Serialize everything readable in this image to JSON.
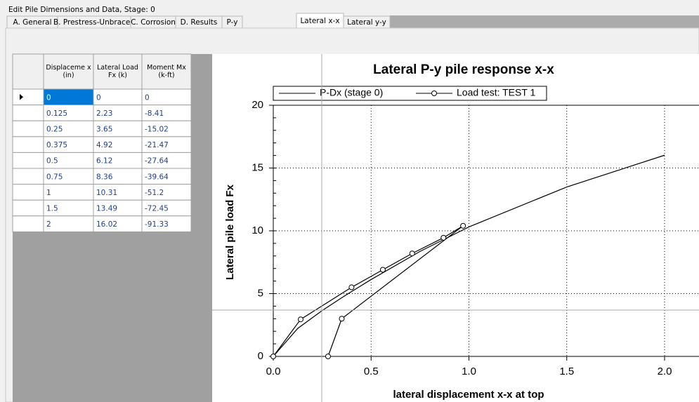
{
  "window": {
    "title": "Edit Pile Dimensions and Data, Stage: 0"
  },
  "tabs": [
    "A. General",
    "B. Prestress-Unbraced",
    "C. Corrosion",
    "D. Results",
    "P-y",
    "Lateral x-x",
    "Lateral y-y"
  ],
  "table": {
    "headers": [
      "Displaceme x (in)",
      "Lateral Load Fx (k)",
      "Moment Mx (k-ft)"
    ],
    "rows": [
      [
        "0",
        "0",
        "0"
      ],
      [
        "0.125",
        "2.23",
        "-8.41"
      ],
      [
        "0.25",
        "3.65",
        "-15.02"
      ],
      [
        "0.375",
        "4.92",
        "-21.47"
      ],
      [
        "0.5",
        "6.12",
        "-27.64"
      ],
      [
        "0.75",
        "8.36",
        "-39.64"
      ],
      [
        "1",
        "10.31",
        "-51.2"
      ],
      [
        "1.5",
        "13.49",
        "-72.45"
      ],
      [
        "2",
        "16.02",
        "-91.33"
      ]
    ]
  },
  "chart_data": {
    "type": "line",
    "title": "Lateral P-y pile response x-x",
    "x_label": "lateral displacement x-x at top",
    "y_label": "Lateral pile load Fx",
    "xlim": [
      0,
      2.25
    ],
    "ylim": [
      0,
      20
    ],
    "xticks": [
      {
        "value": 0,
        "label": "0.0"
      },
      0.5,
      {
        "value": 1,
        "label": "1.0"
      },
      1.5,
      {
        "value": 2,
        "label": "2.0"
      }
    ],
    "yticks": [
      0,
      5,
      10,
      15,
      20
    ],
    "grid": true,
    "legend": "top",
    "series": [
      {
        "name": "P-Dx (stage 0)",
        "color": "#000000",
        "markers": false,
        "x": [
          0,
          0.125,
          0.25,
          0.375,
          0.5,
          0.75,
          1,
          1.5,
          2
        ],
        "values": [
          0,
          2.23,
          3.65,
          4.92,
          6.12,
          8.36,
          10.31,
          13.49,
          16.02
        ]
      },
      {
        "name": "Load test: TEST 1",
        "color": "#000000",
        "markers": true,
        "x": [
          0,
          0.14,
          0.4,
          0.56,
          0.71,
          0.87,
          0.97,
          0.35,
          0.28
        ],
        "values": [
          0,
          2.95,
          5.5,
          6.9,
          8.2,
          9.45,
          10.4,
          3.0,
          0
        ]
      }
    ]
  }
}
